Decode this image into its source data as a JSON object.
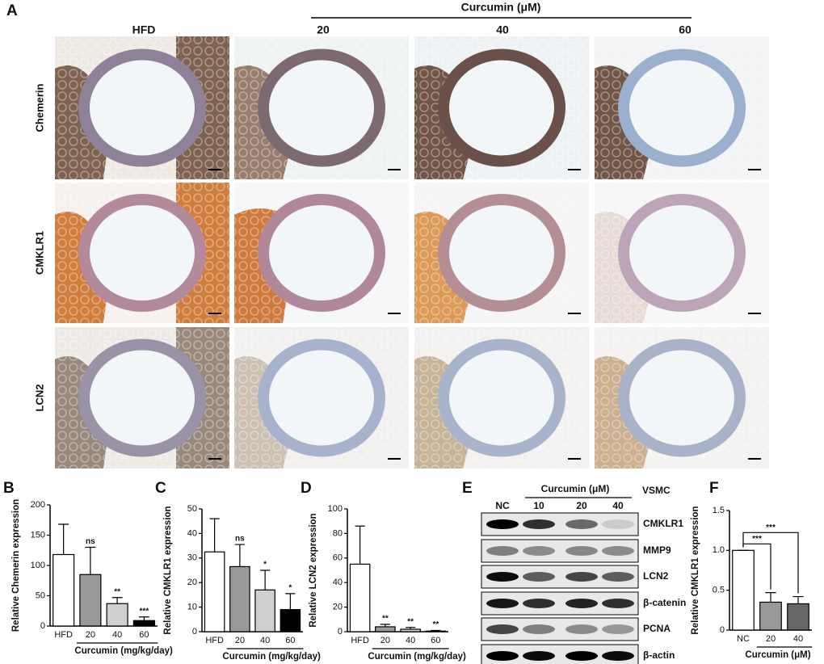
{
  "figure": {
    "panel_labels": [
      "A",
      "B",
      "C",
      "D",
      "E",
      "F"
    ],
    "histology": {
      "treatment": "Curcumin (μM)",
      "columns": [
        "HFD",
        "20",
        "40",
        "60"
      ],
      "rows": [
        "Chemerin",
        "CMKLR1",
        "LCN2"
      ]
    },
    "western_blot": {
      "treatment": "Curcumin (μM)",
      "cell": "VSMC",
      "lanes": [
        "NC",
        "10",
        "20",
        "40"
      ],
      "proteins": [
        "CMKLR1",
        "MMP9",
        "LCN2",
        "β-catenin",
        "PCNA",
        "β-actin"
      ]
    }
  },
  "chart_data": [
    {
      "type": "bar",
      "ylabel": "Relative Chemerin expression",
      "xlabel": "Curcumin (mg/kg/day)",
      "categories": [
        "HFD",
        "20",
        "40",
        "60"
      ],
      "values": [
        118,
        85,
        37,
        9
      ],
      "errors": [
        50,
        45,
        10,
        6
      ],
      "colors": [
        "#ffffff",
        "#999999",
        "#cfcfcf",
        "#000000"
      ],
      "significance": [
        null,
        "ns",
        "**",
        "***"
      ],
      "ylim": [
        0,
        200
      ],
      "yticks": [
        0,
        50,
        100,
        150,
        200
      ]
    },
    {
      "type": "bar",
      "ylabel": "Relative CMKLR1 expression",
      "xlabel": "Curcumin (mg/kg/day)",
      "categories": [
        "HFD",
        "20",
        "40",
        "60"
      ],
      "values": [
        32.5,
        26.5,
        17,
        9
      ],
      "errors": [
        13.5,
        9,
        8,
        6.5
      ],
      "colors": [
        "#ffffff",
        "#999999",
        "#cfcfcf",
        "#000000"
      ],
      "significance": [
        null,
        "ns",
        "*",
        "*"
      ],
      "ylim": [
        0,
        50
      ],
      "yticks": [
        0,
        10,
        20,
        30,
        40,
        50
      ]
    },
    {
      "type": "bar",
      "ylabel": "Relative LCN2 expression",
      "xlabel": "Curcumin (mg/kg/day)",
      "categories": [
        "HFD",
        "20",
        "40",
        "60"
      ],
      "values": [
        55,
        4,
        2,
        0.5
      ],
      "errors": [
        31,
        2,
        1.5,
        0.5
      ],
      "colors": [
        "#ffffff",
        "#999999",
        "#cfcfcf",
        "#000000"
      ],
      "significance": [
        null,
        "**",
        "**",
        "**"
      ],
      "ylim": [
        0,
        100
      ],
      "yticks": [
        0,
        20,
        40,
        60,
        80,
        100
      ]
    },
    {
      "type": "bar",
      "ylabel": "Relative CMKLR1 expression",
      "xlabel": "Curcumin (μM)",
      "categories": [
        "NC",
        "20",
        "40"
      ],
      "values": [
        1.0,
        0.35,
        0.33
      ],
      "errors": [
        0,
        0.12,
        0.09
      ],
      "colors": [
        "#ffffff",
        "#999999",
        "#666666"
      ],
      "significance": [
        null,
        "***",
        "***"
      ],
      "brackets": true,
      "ylim": [
        0,
        1.5
      ],
      "yticks": [
        0,
        0.5,
        {
          "value": 1.0,
          "label": "1.0"
        },
        {
          "value": 1.5,
          "label": "1.5"
        }
      ]
    }
  ]
}
